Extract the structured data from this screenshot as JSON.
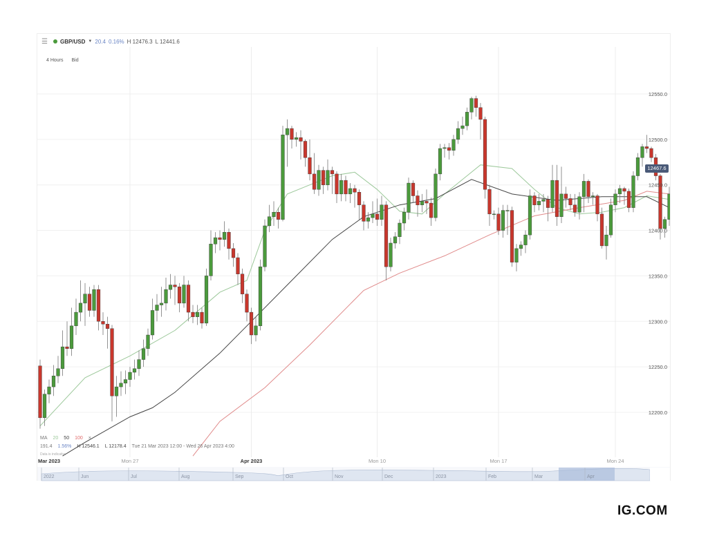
{
  "toolbar": {
    "menu_icon": "hamburger-icon",
    "status_color": "#4b9a3c",
    "symbol": "GBP/USD",
    "change": "20.4",
    "change_pct": "0.16%",
    "high": "H 12476.3",
    "low": "L 12441.6"
  },
  "subbar": {
    "interval": "4 Hours",
    "price_type": "Bid"
  },
  "legend": {
    "ma_label": "MA",
    "ma_periods": [
      "20",
      "50",
      "100"
    ],
    "close_icon": "×",
    "range_change": "191.4",
    "range_pct": "1.56%",
    "range_high": "H 12546.1",
    "range_low": "L 12178.4",
    "range_dates": "Tue 21 Mar 2023 12:00 - Wed 26 Apr 2023 4:00",
    "disclaimer": "Data is indicative"
  },
  "price_tag": "12467.6",
  "navigator": {
    "labels": [
      "2022",
      "Jun",
      "Jul",
      "Aug",
      "Sep",
      "Oct",
      "Nov",
      "Dec",
      "2023",
      "Feb",
      "Mar",
      "Apr"
    ]
  },
  "logo": "IG.COM",
  "colors": {
    "up": "#4b9a3c",
    "down": "#c8372d",
    "ma20": "#9cc89a",
    "ma50": "#444444",
    "ma100": "#e08a8a",
    "tag": "#4a5a78"
  },
  "chart_data": {
    "type": "candlestick",
    "title": "GBP/USD",
    "ylim": [
      12150,
      12595
    ],
    "y_ticks": [
      "12550.0",
      "12500.0",
      "12450.0",
      "12400.0",
      "12350.0",
      "12300.0",
      "12250.0",
      "12200.0"
    ],
    "x_ticks": [
      {
        "label": "Mar 2023",
        "bold": true
      },
      {
        "label": "Mon 27",
        "bold": false
      },
      {
        "label": "Apr 2023",
        "bold": true
      },
      {
        "label": "Mon 10",
        "bold": false
      },
      {
        "label": "Mon 17",
        "bold": false
      },
      {
        "label": "Mon 24",
        "bold": false
      }
    ],
    "grid": true,
    "candles_ohlc": [
      [
        12251,
        12258,
        12182,
        12194
      ],
      [
        12194,
        12225,
        12185,
        12220
      ],
      [
        12220,
        12236,
        12210,
        12228
      ],
      [
        12228,
        12252,
        12218,
        12240
      ],
      [
        12240,
        12262,
        12232,
        12248
      ],
      [
        12248,
        12290,
        12240,
        12272
      ],
      [
        12272,
        12300,
        12262,
        12270
      ],
      [
        12270,
        12315,
        12262,
        12295
      ],
      [
        12295,
        12325,
        12285,
        12310
      ],
      [
        12310,
        12345,
        12300,
        12320
      ],
      [
        12320,
        12342,
        12295,
        12330
      ],
      [
        12330,
        12338,
        12305,
        12312
      ],
      [
        12312,
        12340,
        12305,
        12335
      ],
      [
        12335,
        12340,
        12290,
        12300
      ],
      [
        12300,
        12310,
        12285,
        12297
      ],
      [
        12297,
        12305,
        12270,
        12292
      ],
      [
        12292,
        12296,
        12190,
        12218
      ],
      [
        12218,
        12240,
        12195,
        12228
      ],
      [
        12228,
        12245,
        12218,
        12232
      ],
      [
        12232,
        12246,
        12220,
        12236
      ],
      [
        12236,
        12250,
        12228,
        12244
      ],
      [
        12244,
        12258,
        12236,
        12248
      ],
      [
        12248,
        12268,
        12240,
        12258
      ],
      [
        12258,
        12280,
        12250,
        12270
      ],
      [
        12270,
        12292,
        12262,
        12285
      ],
      [
        12285,
        12325,
        12280,
        12312
      ],
      [
        12312,
        12330,
        12300,
        12318
      ],
      [
        12318,
        12338,
        12305,
        12320
      ],
      [
        12320,
        12348,
        12312,
        12335
      ],
      [
        12335,
        12352,
        12325,
        12340
      ],
      [
        12340,
        12350,
        12318,
        12338
      ],
      [
        12338,
        12342,
        12310,
        12320
      ],
      [
        12320,
        12350,
        12315,
        12340
      ],
      [
        12340,
        12345,
        12300,
        12310
      ],
      [
        12310,
        12318,
        12298,
        12305
      ],
      [
        12305,
        12318,
        12296,
        12310
      ],
      [
        12310,
        12315,
        12292,
        12298
      ],
      [
        12298,
        12358,
        12295,
        12350
      ],
      [
        12350,
        12400,
        12345,
        12385
      ],
      [
        12385,
        12398,
        12375,
        12392
      ],
      [
        12392,
        12400,
        12378,
        12390
      ],
      [
        12390,
        12410,
        12382,
        12398
      ],
      [
        12398,
        12402,
        12368,
        12380
      ],
      [
        12380,
        12386,
        12360,
        12370
      ],
      [
        12370,
        12375,
        12340,
        12352
      ],
      [
        12352,
        12358,
        12320,
        12330
      ],
      [
        12330,
        12335,
        12300,
        12310
      ],
      [
        12310,
        12315,
        12275,
        12285
      ],
      [
        12285,
        12305,
        12278,
        12295
      ],
      [
        12295,
        12368,
        12290,
        12360
      ],
      [
        12360,
        12412,
        12355,
        12405
      ],
      [
        12405,
        12428,
        12398,
        12415
      ],
      [
        12415,
        12432,
        12405,
        12420
      ],
      [
        12420,
        12425,
        12402,
        12412
      ],
      [
        12412,
        12515,
        12410,
        12505
      ],
      [
        12505,
        12522,
        12470,
        12512
      ],
      [
        12512,
        12515,
        12490,
        12500
      ],
      [
        12500,
        12508,
        12492,
        12502
      ],
      [
        12502,
        12510,
        12478,
        12498
      ],
      [
        12498,
        12500,
        12470,
        12480
      ],
      [
        12480,
        12500,
        12455,
        12462
      ],
      [
        12462,
        12485,
        12440,
        12445
      ],
      [
        12445,
        12472,
        12438,
        12466
      ],
      [
        12466,
        12470,
        12440,
        12450
      ],
      [
        12450,
        12478,
        12444,
        12466
      ],
      [
        12466,
        12470,
        12440,
        12462
      ],
      [
        12462,
        12465,
        12430,
        12440
      ],
      [
        12440,
        12462,
        12432,
        12455
      ],
      [
        12455,
        12460,
        12432,
        12440
      ],
      [
        12440,
        12452,
        12430,
        12446
      ],
      [
        12446,
        12450,
        12425,
        12442
      ],
      [
        12442,
        12445,
        12412,
        12428
      ],
      [
        12428,
        12432,
        12400,
        12410
      ],
      [
        12410,
        12420,
        12402,
        12414
      ],
      [
        12414,
        12432,
        12408,
        12418
      ],
      [
        12418,
        12435,
        12405,
        12412
      ],
      [
        12412,
        12438,
        12405,
        12428
      ],
      [
        12428,
        12432,
        12345,
        12360
      ],
      [
        12360,
        12392,
        12355,
        12386
      ],
      [
        12386,
        12398,
        12380,
        12393
      ],
      [
        12393,
        12412,
        12385,
        12408
      ],
      [
        12408,
        12425,
        12400,
        12420
      ],
      [
        12420,
        12458,
        12412,
        12452
      ],
      [
        12452,
        12455,
        12430,
        12438
      ],
      [
        12438,
        12444,
        12415,
        12428
      ],
      [
        12428,
        12440,
        12420,
        12432
      ],
      [
        12432,
        12445,
        12418,
        12430
      ],
      [
        12430,
        12436,
        12405,
        12414
      ],
      [
        12414,
        12468,
        12410,
        12462
      ],
      [
        12462,
        12495,
        12455,
        12490
      ],
      [
        12490,
        12495,
        12480,
        12491
      ],
      [
        12491,
        12496,
        12478,
        12488
      ],
      [
        12488,
        12505,
        12482,
        12500
      ],
      [
        12500,
        12520,
        12495,
        12512
      ],
      [
        12512,
        12525,
        12505,
        12515
      ],
      [
        12515,
        12535,
        12510,
        12530
      ],
      [
        12530,
        12547,
        12522,
        12545
      ],
      [
        12545,
        12548,
        12525,
        12535
      ],
      [
        12535,
        12540,
        12500,
        12522
      ],
      [
        12522,
        12525,
        12435,
        12445
      ],
      [
        12445,
        12450,
        12405,
        12418
      ],
      [
        12418,
        12422,
        12412,
        12418
      ],
      [
        12418,
        12425,
        12395,
        12400
      ],
      [
        12400,
        12428,
        12392,
        12422
      ],
      [
        12422,
        12428,
        12395,
        12422
      ],
      [
        12422,
        12426,
        12360,
        12365
      ],
      [
        12365,
        12385,
        12355,
        12380
      ],
      [
        12380,
        12388,
        12372,
        12384
      ],
      [
        12384,
        12400,
        12375,
        12395
      ],
      [
        12395,
        12445,
        12390,
        12438
      ],
      [
        12438,
        12442,
        12420,
        12428
      ],
      [
        12428,
        12440,
        12422,
        12432
      ],
      [
        12432,
        12440,
        12420,
        12434
      ],
      [
        12434,
        12438,
        12410,
        12425
      ],
      [
        12425,
        12472,
        12420,
        12455
      ],
      [
        12455,
        12472,
        12405,
        12415
      ],
      [
        12415,
        12470,
        12408,
        12440
      ],
      [
        12440,
        12448,
        12425,
        12435
      ],
      [
        12435,
        12440,
        12422,
        12428
      ],
      [
        12428,
        12440,
        12415,
        12420
      ],
      [
        12420,
        12442,
        12412,
        12437
      ],
      [
        12437,
        12462,
        12420,
        12454
      ],
      [
        12454,
        12456,
        12430,
        12437
      ],
      [
        12437,
        12442,
        12428,
        12438
      ],
      [
        12438,
        12440,
        12410,
        12418
      ],
      [
        12418,
        12425,
        12380,
        12383
      ],
      [
        12383,
        12405,
        12368,
        12395
      ],
      [
        12395,
        12435,
        12392,
        12428
      ],
      [
        12428,
        12445,
        12420,
        12440
      ],
      [
        12440,
        12450,
        12430,
        12446
      ],
      [
        12446,
        12448,
        12428,
        12443
      ],
      [
        12443,
        12446,
        12420,
        12425
      ],
      [
        12425,
        12465,
        12420,
        12460
      ],
      [
        12460,
        12485,
        12455,
        12480
      ],
      [
        12480,
        12495,
        12470,
        12492
      ],
      [
        12492,
        12505,
        12485,
        12490
      ],
      [
        12490,
        12492,
        12475,
        12480
      ],
      [
        12480,
        12484,
        12455,
        12460
      ],
      [
        12460,
        12462,
        12390,
        12402
      ],
      [
        12402,
        12415,
        12392,
        12412
      ],
      [
        12412,
        12448,
        12405,
        12440
      ]
    ],
    "x_tick_candle_index": [
      0,
      20,
      47,
      75,
      102,
      128
    ],
    "moving_averages": [
      {
        "name": "MA 20",
        "points": [
          [
            0,
            12185
          ],
          [
            10,
            12238
          ],
          [
            20,
            12262
          ],
          [
            30,
            12290
          ],
          [
            40,
            12332
          ],
          [
            46,
            12345
          ],
          [
            50,
            12400
          ],
          [
            55,
            12440
          ],
          [
            60,
            12450
          ],
          [
            65,
            12460
          ],
          [
            70,
            12464
          ],
          [
            75,
            12445
          ],
          [
            80,
            12421
          ],
          [
            85,
            12418
          ],
          [
            90,
            12440
          ],
          [
            95,
            12460
          ],
          [
            98,
            12472
          ],
          [
            105,
            12468
          ],
          [
            110,
            12445
          ],
          [
            115,
            12425
          ],
          [
            120,
            12418
          ],
          [
            125,
            12420
          ],
          [
            130,
            12425
          ],
          [
            135,
            12438
          ],
          [
            140,
            12434
          ]
        ]
      },
      {
        "name": "MA 50",
        "points": [
          [
            5,
            12152
          ],
          [
            10,
            12167
          ],
          [
            20,
            12195
          ],
          [
            25,
            12205
          ],
          [
            30,
            12222
          ],
          [
            40,
            12265
          ],
          [
            47,
            12300
          ],
          [
            55,
            12340
          ],
          [
            65,
            12390
          ],
          [
            72,
            12415
          ],
          [
            80,
            12428
          ],
          [
            88,
            12435
          ],
          [
            96,
            12456
          ],
          [
            105,
            12440
          ],
          [
            115,
            12433
          ],
          [
            125,
            12437
          ],
          [
            135,
            12437
          ],
          [
            140,
            12425
          ]
        ]
      },
      {
        "name": "MA 100",
        "points": [
          [
            34,
            12152
          ],
          [
            40,
            12190
          ],
          [
            50,
            12227
          ],
          [
            60,
            12274
          ],
          [
            72,
            12334
          ],
          [
            80,
            12353
          ],
          [
            90,
            12372
          ],
          [
            100,
            12395
          ],
          [
            110,
            12416
          ],
          [
            120,
            12425
          ],
          [
            130,
            12433
          ],
          [
            135,
            12443
          ],
          [
            140,
            12440
          ]
        ]
      }
    ]
  }
}
